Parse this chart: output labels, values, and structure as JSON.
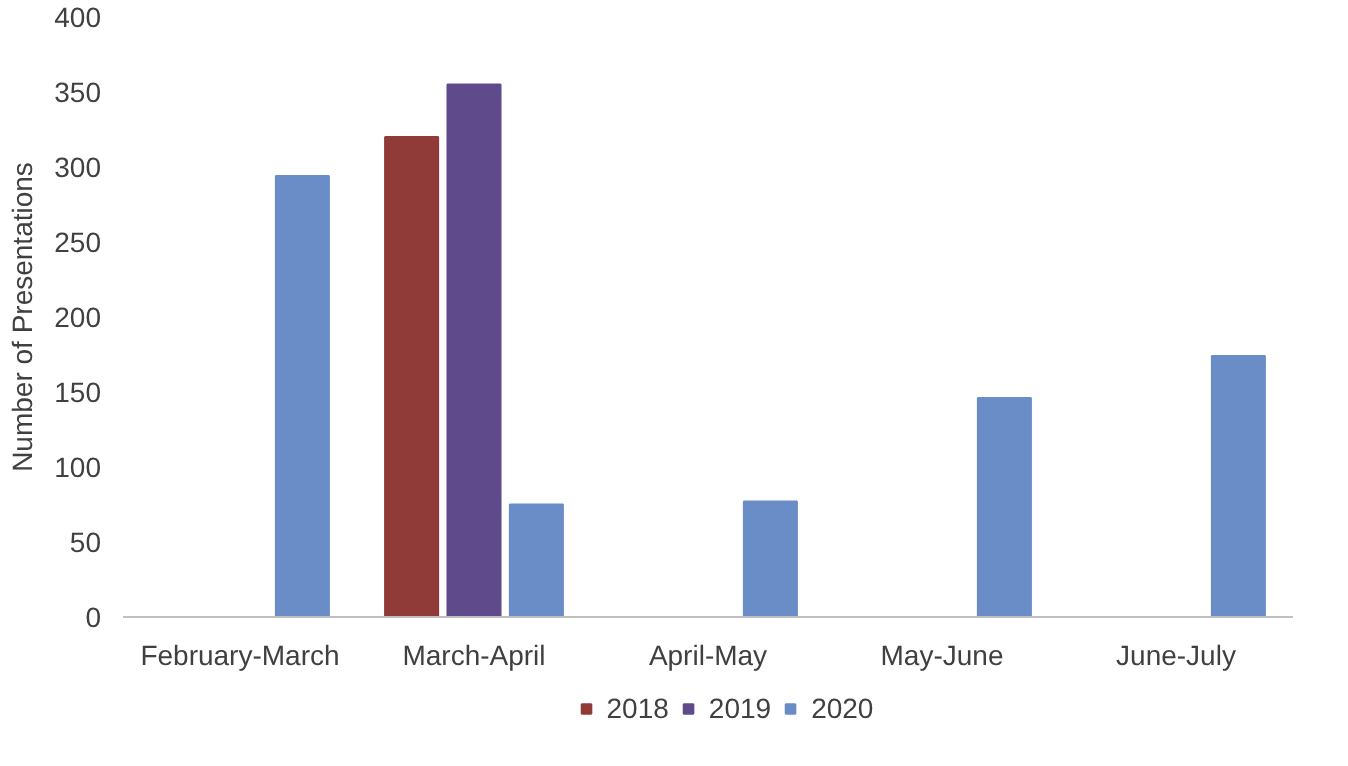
{
  "chart_data": {
    "type": "bar",
    "ylabel": "Number of Presentations",
    "categories": [
      "February-March",
      "March-April",
      "April-May",
      "May-June",
      "June-July"
    ],
    "series": [
      {
        "name": "2018",
        "color": "#913b38",
        "values": [
          null,
          320,
          null,
          null,
          null
        ]
      },
      {
        "name": "2019",
        "color": "#5f4b8b",
        "values": [
          null,
          355,
          null,
          null,
          null
        ]
      },
      {
        "name": "2020",
        "color": "#6a8cc7",
        "values": [
          294,
          75,
          77,
          146,
          174
        ]
      }
    ],
    "ylim": [
      0,
      400
    ],
    "yticks": [
      0,
      50,
      100,
      150,
      200,
      250,
      300,
      350,
      400
    ],
    "grid": false,
    "legend": "bottom"
  }
}
